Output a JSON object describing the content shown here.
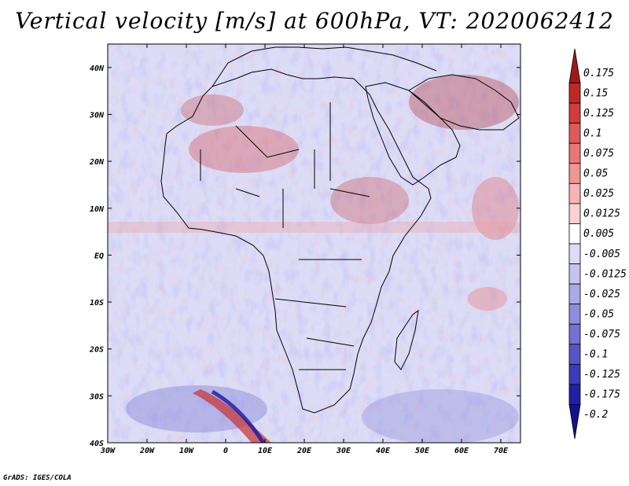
{
  "title": "Vertical velocity [m/s] at 600hPa, VT: 2020062412",
  "footer": "GrADS: IGES/COLA",
  "map_data": {
    "projection": "latlon",
    "lon_range": [
      -30,
      75
    ],
    "lat_range": [
      -40,
      45
    ],
    "lon_ticks": [
      -30,
      -20,
      -10,
      0,
      10,
      20,
      30,
      40,
      50,
      60,
      70
    ],
    "lon_tick_labels": [
      "30W",
      "20W",
      "10W",
      "0",
      "10E",
      "20E",
      "30E",
      "40E",
      "50E",
      "60E",
      "70E"
    ],
    "lat_ticks": [
      40,
      30,
      20,
      10,
      0,
      -10,
      -20,
      -30,
      -40
    ],
    "lat_tick_labels": [
      "40N",
      "30N",
      "20N",
      "10N",
      "EQ",
      "10S",
      "20S",
      "30S",
      "40S"
    ],
    "variable": "Vertical velocity",
    "units": "m/s",
    "level": "600hPa",
    "valid_time": "2020062412"
  },
  "colorbar": {
    "levels": [
      "0.175",
      "0.15",
      "0.125",
      "0.1",
      "0.075",
      "0.05",
      "0.025",
      "0.0125",
      "0.005",
      "-0.005",
      "-0.0125",
      "-0.025",
      "-0.05",
      "-0.075",
      "-0.1",
      "-0.125",
      "-0.175",
      "-0.2"
    ],
    "colors": [
      "#a01818",
      "#c02828",
      "#d23c3c",
      "#e05a5a",
      "#e87878",
      "#f09696",
      "#f6b4b4",
      "#fad0d0",
      "#ffffff",
      "#dcdcf8",
      "#c4c4f0",
      "#aaaae6",
      "#8e8ede",
      "#7272d2",
      "#5656c6",
      "#3c3cb8",
      "#2020a6",
      "#121290"
    ]
  }
}
